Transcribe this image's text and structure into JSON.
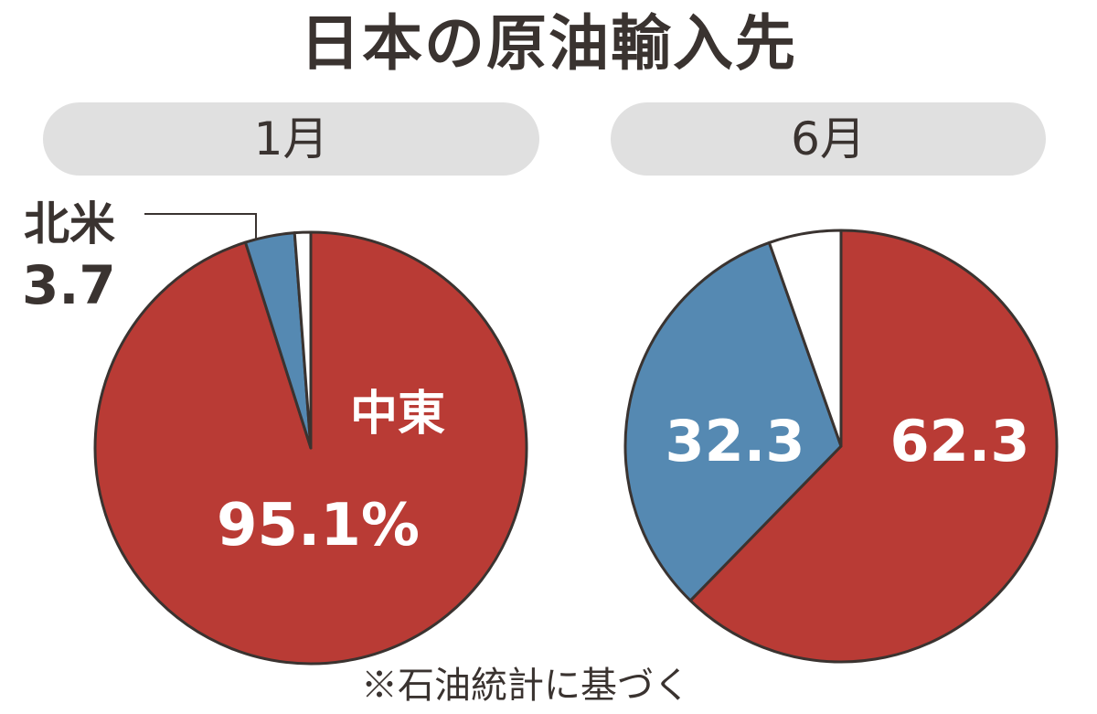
{
  "title": "日本の原油輸入先",
  "footnote": "※石油統計に基づく",
  "colors": {
    "middle_east": "#b93b35",
    "north_america": "#5589b2",
    "other": "#ffffff",
    "outline": "#3a3330",
    "pill": "#e0e0e0",
    "text_dark": "#3a3330"
  },
  "chart_data": [
    {
      "type": "pie",
      "title": "1月",
      "slices": [
        {
          "key": "middle_east",
          "label": "中東",
          "value": 95.1,
          "value_label": "95.1%"
        },
        {
          "key": "north_america",
          "label": "北米",
          "value": 3.7,
          "value_label": "3.7"
        },
        {
          "key": "other",
          "label": "",
          "value": 1.2,
          "value_label": ""
        }
      ]
    },
    {
      "type": "pie",
      "title": "6月",
      "slices": [
        {
          "key": "middle_east",
          "label": "",
          "value": 62.3,
          "value_label": "62.3"
        },
        {
          "key": "north_america",
          "label": "",
          "value": 32.3,
          "value_label": "32.3"
        },
        {
          "key": "other",
          "label": "",
          "value": 5.4,
          "value_label": ""
        }
      ]
    }
  ]
}
